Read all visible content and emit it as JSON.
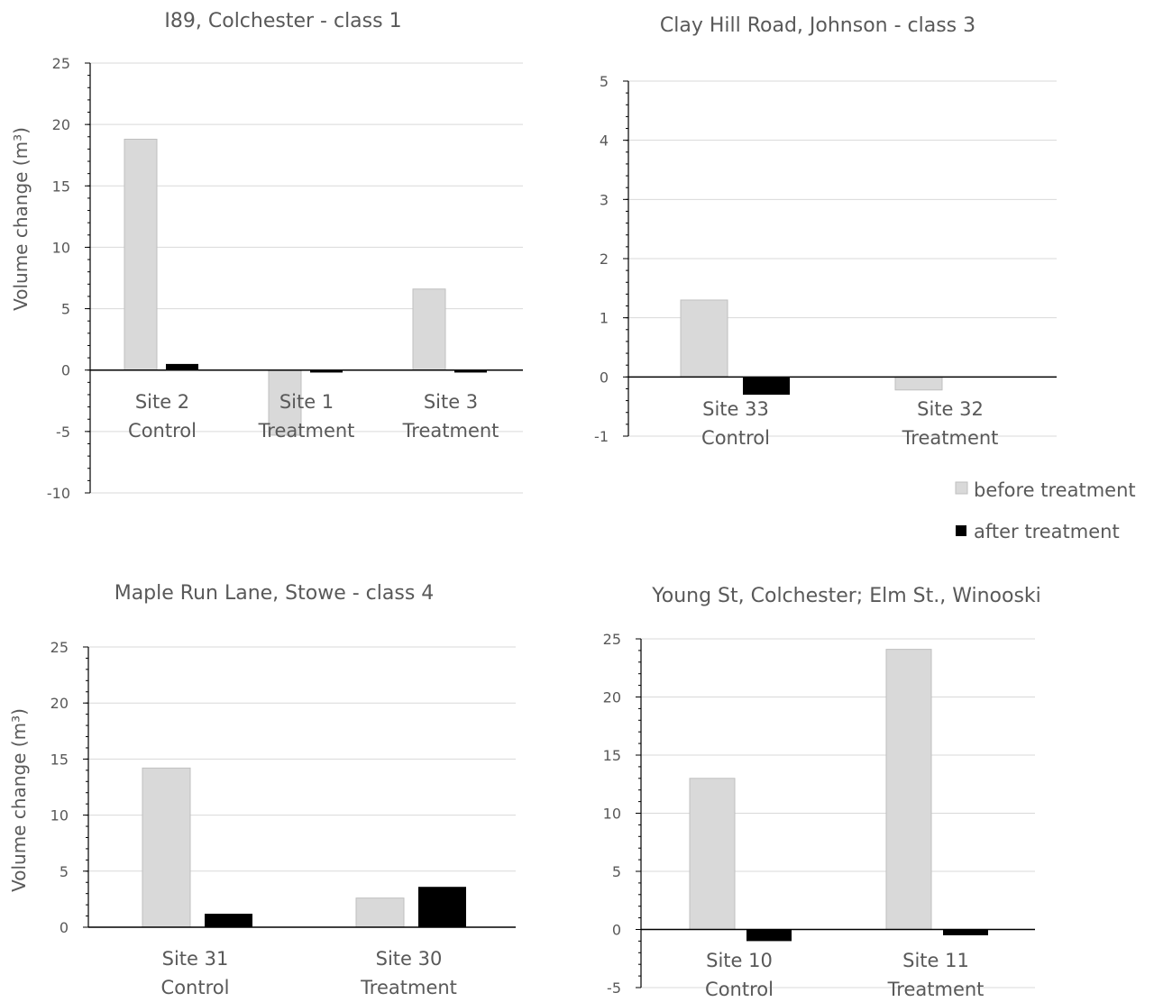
{
  "legend": {
    "before_label": "before treatment",
    "after_label": "after treatment",
    "before_color": "#d9d9d9",
    "after_color": "#000000"
  },
  "chart_data": [
    {
      "type": "bar",
      "title": "I89, Colchester - class 1",
      "ylabel": "Volume change (m³)",
      "ylim": [
        -10,
        25
      ],
      "yticks": [
        25,
        20,
        15,
        10,
        5,
        0,
        -5,
        -10
      ],
      "grid": true,
      "categories": [
        [
          "Site 2",
          "Control"
        ],
        [
          "Site 1",
          "Treatment"
        ],
        [
          "Site 3",
          "Treatment"
        ]
      ],
      "series": [
        {
          "name": "before treatment",
          "values": [
            18.8,
            -5.3,
            6.6
          ]
        },
        {
          "name": "after treatment",
          "values": [
            0.5,
            -0.2,
            -0.2
          ]
        }
      ]
    },
    {
      "type": "bar",
      "title": "Clay Hill Road, Johnson - class 3",
      "ylabel": "",
      "ylim": [
        -1,
        5
      ],
      "yticks": [
        5,
        4,
        3,
        2,
        1,
        0,
        -1
      ],
      "grid": true,
      "legend": "right-bottom",
      "categories": [
        [
          "Site 33",
          "Control"
        ],
        [
          "Site 32",
          "Treatment"
        ]
      ],
      "series": [
        {
          "name": "before treatment",
          "values": [
            1.3,
            -0.22
          ]
        },
        {
          "name": "after treatment",
          "values": [
            -0.3,
            0
          ]
        }
      ]
    },
    {
      "type": "bar",
      "title": "Maple Run Lane, Stowe - class 4",
      "ylabel": "Volume change (m³)",
      "ylim": [
        0,
        25
      ],
      "yticks": [
        25,
        20,
        15,
        10,
        5,
        0
      ],
      "grid": true,
      "categories": [
        [
          "Site 31",
          "Control"
        ],
        [
          "Site 30",
          "Treatment"
        ]
      ],
      "series": [
        {
          "name": "before treatment",
          "values": [
            14.2,
            2.6
          ]
        },
        {
          "name": "after treatment",
          "values": [
            1.2,
            3.6
          ]
        }
      ]
    },
    {
      "type": "bar",
      "title": "Young St, Colchester; Elm St., Winooski",
      "ylabel": "",
      "ylim": [
        -5,
        25
      ],
      "yticks": [
        25,
        20,
        15,
        10,
        5,
        0,
        -5
      ],
      "grid": true,
      "categories": [
        [
          "Site 10",
          "Control"
        ],
        [
          "Site 11",
          "Treatment"
        ]
      ],
      "series": [
        {
          "name": "before treatment",
          "values": [
            13.0,
            24.1
          ]
        },
        {
          "name": "after treatment",
          "values": [
            -1.0,
            -0.5
          ]
        }
      ]
    }
  ]
}
